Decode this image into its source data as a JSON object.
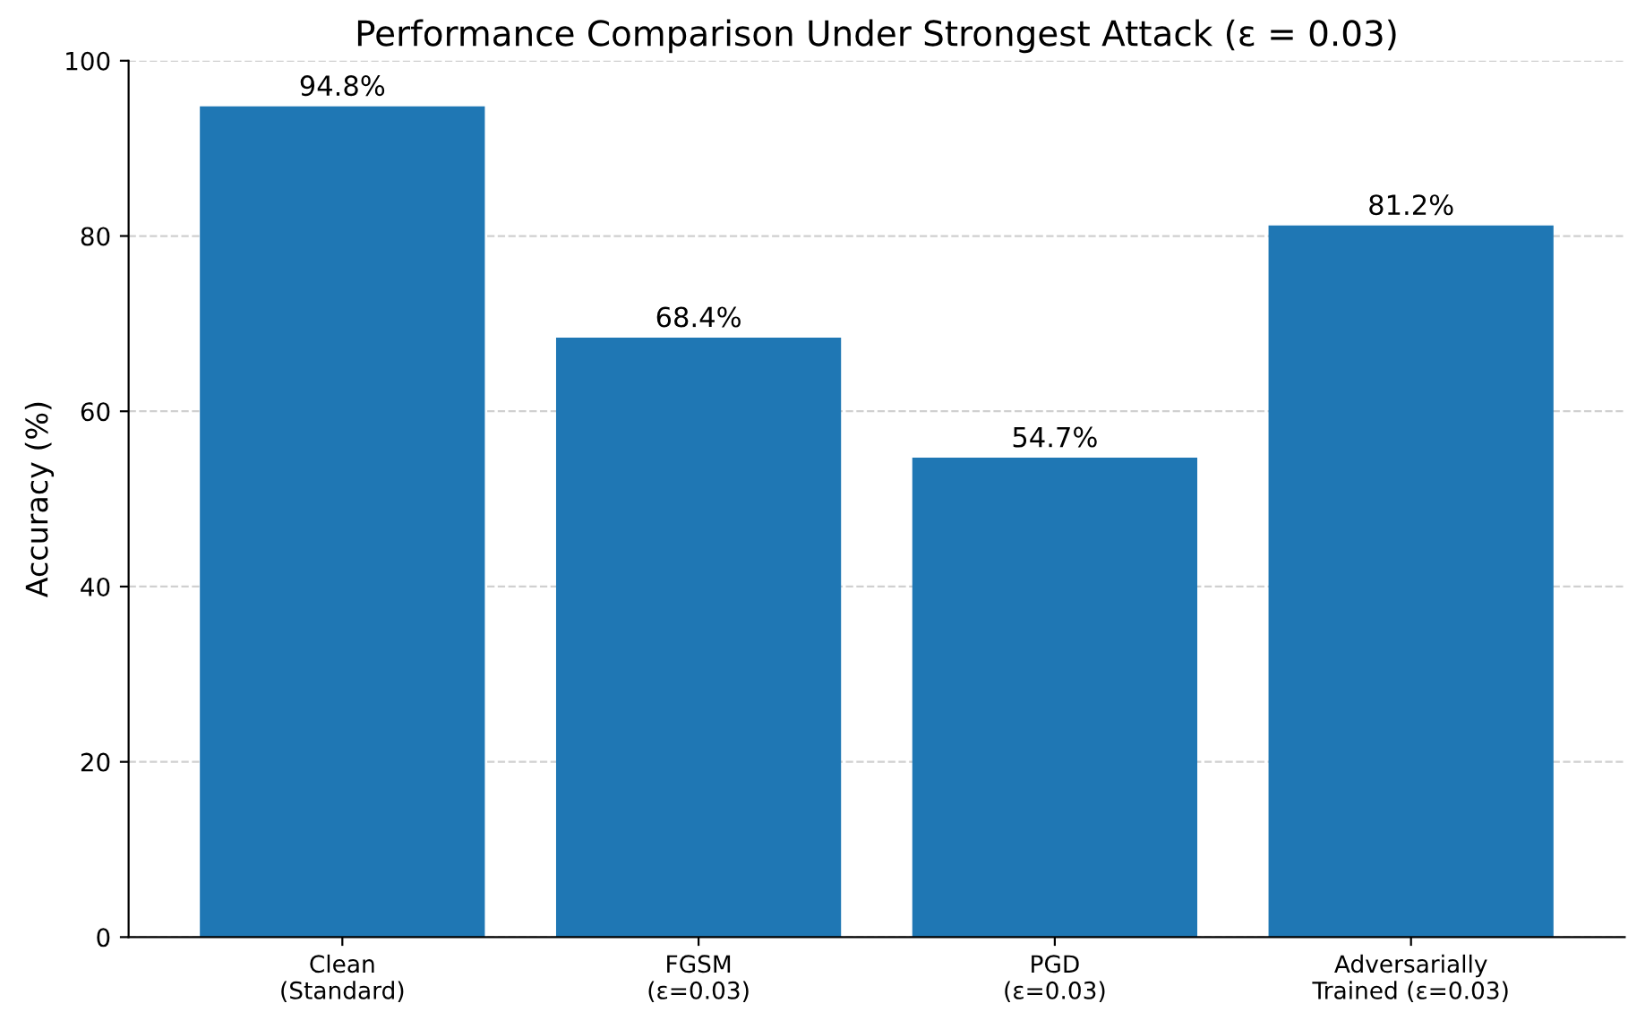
{
  "chart_data": {
    "type": "bar",
    "title": "Performance Comparison Under Strongest Attack (ε = 0.03)",
    "ylabel": "Accuracy (%)",
    "categories": [
      "Clean\n(Standard)",
      "FGSM\n(ε=0.03)",
      "PGD\n(ε=0.03)",
      "Adversarially\nTrained (ε=0.03)"
    ],
    "values": [
      94.8,
      68.4,
      54.7,
      81.2
    ],
    "value_labels": [
      "94.8%",
      "68.4%",
      "54.7%",
      "81.2%"
    ],
    "color": "#1f77b4",
    "ylim": [
      0,
      100
    ],
    "yticks": [
      0,
      20,
      40,
      60,
      80,
      100
    ],
    "grid": "y"
  }
}
